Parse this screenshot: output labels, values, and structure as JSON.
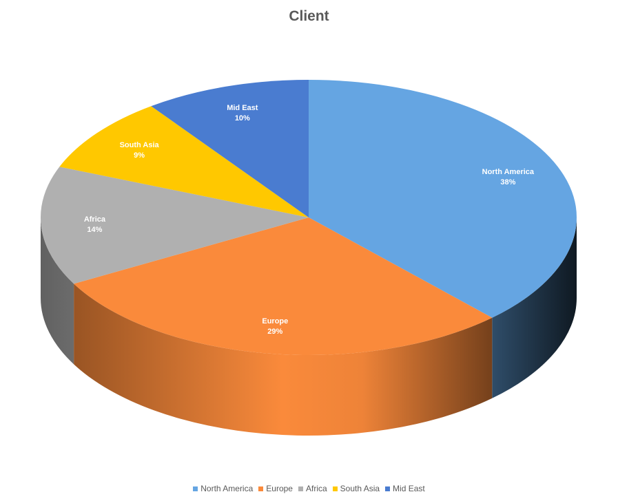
{
  "chart_data": {
    "type": "pie",
    "title": "Client",
    "three_d": true,
    "legend_position": "bottom",
    "slices": [
      {
        "name": "North America",
        "value": 38,
        "label": "38%",
        "color": "#65A5E2"
      },
      {
        "name": "Europe",
        "value": 29,
        "label": "29%",
        "color": "#FA8A3B"
      },
      {
        "name": "Africa",
        "value": 14,
        "label": "14%",
        "color": "#B0B0B0"
      },
      {
        "name": "South Asia",
        "value": 9,
        "label": "9%",
        "color": "#FFC800"
      },
      {
        "name": "Mid East",
        "value": 10,
        "label": "10%",
        "color": "#4A7CD0"
      }
    ]
  }
}
